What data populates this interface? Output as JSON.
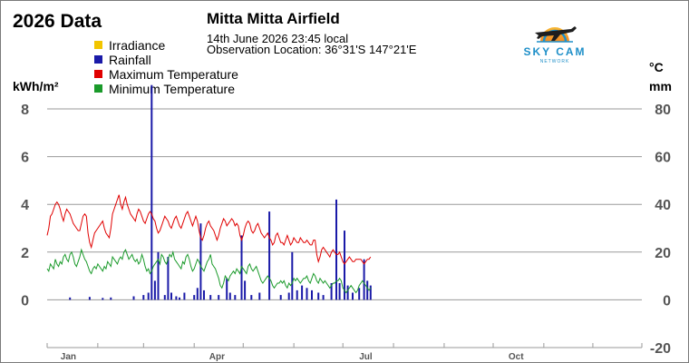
{
  "header": {
    "year_title": "2026 Data",
    "station": "Mitta Mitta Airfield",
    "datetime": "14th June 2026  23:45 local",
    "location": "Observation Location: 36°31'S 147°21'E"
  },
  "logo": {
    "text": "SKY CAM",
    "subtext": "NETWORK",
    "icon": "plane-sunset-icon"
  },
  "colors": {
    "irradiance": "#f2c500",
    "rainfall": "#1a1aa8",
    "max_temp": "#e00000",
    "min_temp": "#1a9a2a",
    "grid": "#9a9a9a",
    "axis_text": "#555555",
    "logo_blue": "#1e8fc8",
    "logo_orange": "#f5a623"
  },
  "chart_data": {
    "type": "line",
    "title": "2026 Data",
    "legend_position": "top-left",
    "grid": true,
    "legend": [
      "Irradiance",
      "Rainfall",
      "Maximum Temperature",
      "Minimum Temperature"
    ],
    "left_axis": {
      "label": "kWh/m²",
      "ticks": [
        "8",
        "6",
        "4",
        "2",
        "0"
      ],
      "range": [
        0,
        8
      ]
    },
    "right_axis": {
      "labels": [
        "°C",
        "mm"
      ],
      "ticks": [
        "80",
        "60",
        "40",
        "20",
        "0",
        "-20"
      ],
      "range": [
        -20,
        80
      ]
    },
    "x_axis": {
      "ticks": [
        "Jan",
        "Apr",
        "Jul",
        "Oct"
      ],
      "range_days": [
        1,
        365
      ]
    },
    "series": [
      {
        "name": "Maximum Temperature",
        "unit": "°C",
        "key": "max_temp",
        "start_day": 1,
        "values": [
          27,
          30,
          35,
          36,
          38,
          40,
          41,
          40,
          38,
          35,
          33,
          36,
          38,
          37,
          36,
          34,
          32,
          31,
          30,
          29,
          29,
          32,
          35,
          36,
          35,
          28,
          24,
          22,
          25,
          28,
          29,
          30,
          31,
          32,
          33,
          30,
          28,
          27,
          26,
          30,
          36,
          38,
          40,
          42,
          44,
          40,
          38,
          41,
          43,
          40,
          38,
          36,
          35,
          34,
          33,
          36,
          38,
          37,
          35,
          33,
          32,
          34,
          36,
          37,
          36,
          34,
          33,
          30,
          28,
          29,
          31,
          33,
          35,
          34,
          33,
          31,
          30,
          32,
          34,
          35,
          33,
          31,
          30,
          32,
          34,
          36,
          37,
          35,
          33,
          31,
          33,
          35,
          33,
          29,
          26,
          25,
          27,
          30,
          32,
          33,
          31,
          30,
          29,
          27,
          25,
          27,
          30,
          32,
          34,
          33,
          31,
          32,
          33,
          34,
          33,
          31,
          32,
          31,
          27,
          25,
          27,
          30,
          32,
          33,
          32,
          29,
          28,
          29,
          31,
          32,
          30,
          28,
          27,
          26,
          27,
          28,
          26,
          25,
          23,
          24,
          27,
          28,
          26,
          24,
          24,
          23,
          25,
          27,
          25,
          23,
          24,
          26,
          25,
          24,
          24,
          26,
          25,
          24,
          24,
          25,
          24,
          23,
          23,
          25,
          25,
          19,
          16,
          18,
          21,
          22,
          21,
          20,
          19,
          18,
          20,
          21,
          20,
          19,
          19,
          20,
          18,
          16,
          15,
          16,
          17,
          18,
          17,
          16,
          16,
          17,
          17,
          17,
          17,
          16,
          15,
          16,
          17,
          17,
          18
        ]
      },
      {
        "name": "Minimum Temperature",
        "unit": "°C",
        "key": "min_temp",
        "start_day": 1,
        "values": [
          13,
          12,
          15,
          14,
          13,
          17,
          15,
          14,
          16,
          15,
          18,
          19,
          17,
          16,
          19,
          20,
          18,
          15,
          14,
          16,
          18,
          21,
          19,
          17,
          16,
          14,
          12,
          11,
          13,
          14,
          13,
          15,
          14,
          13,
          12,
          14,
          13,
          16,
          15,
          14,
          18,
          17,
          16,
          15,
          17,
          18,
          17,
          20,
          21,
          19,
          17,
          18,
          19,
          17,
          16,
          17,
          15,
          16,
          19,
          17,
          14,
          12,
          13,
          11,
          12,
          14,
          15,
          16,
          17,
          15,
          19,
          18,
          16,
          15,
          17,
          19,
          18,
          20,
          17,
          16,
          15,
          14,
          13,
          16,
          15,
          18,
          19,
          17,
          14,
          12,
          13,
          15,
          17,
          16,
          14,
          13,
          12,
          14,
          16,
          17,
          19,
          15,
          14,
          13,
          11,
          9,
          6,
          5,
          7,
          10,
          9,
          8,
          10,
          11,
          12,
          11,
          13,
          12,
          11,
          14,
          13,
          12,
          11,
          14,
          15,
          13,
          12,
          13,
          14,
          12,
          10,
          8,
          7,
          8,
          9,
          10,
          9,
          8,
          6,
          5,
          6,
          7,
          7,
          8,
          7,
          8,
          6,
          5,
          7,
          6,
          7,
          9,
          8,
          9,
          8,
          7,
          8,
          9,
          9,
          10,
          8,
          7,
          9,
          11,
          10,
          8,
          7,
          9,
          8,
          7,
          8,
          7,
          6,
          5,
          6,
          7,
          7,
          8,
          8,
          9,
          8,
          5,
          4,
          3,
          4,
          5,
          6,
          5,
          4,
          3,
          4,
          6,
          7,
          8,
          7,
          6,
          5,
          4,
          5
        ]
      },
      {
        "name": "Rainfall",
        "unit": "mm",
        "key": "rainfall",
        "type": "bar",
        "points": [
          {
            "day": 15,
            "mm": 1
          },
          {
            "day": 27,
            "mm": 1.2
          },
          {
            "day": 35,
            "mm": 0.8
          },
          {
            "day": 40,
            "mm": 1
          },
          {
            "day": 54,
            "mm": 1.5
          },
          {
            "day": 60,
            "mm": 2
          },
          {
            "day": 63,
            "mm": 3
          },
          {
            "day": 65,
            "mm": 90
          },
          {
            "day": 67,
            "mm": 8
          },
          {
            "day": 69,
            "mm": 20
          },
          {
            "day": 73,
            "mm": 2
          },
          {
            "day": 75,
            "mm": 18
          },
          {
            "day": 77,
            "mm": 3
          },
          {
            "day": 80,
            "mm": 1.5
          },
          {
            "day": 82,
            "mm": 1
          },
          {
            "day": 85,
            "mm": 3
          },
          {
            "day": 91,
            "mm": 2
          },
          {
            "day": 93,
            "mm": 5
          },
          {
            "day": 95,
            "mm": 32
          },
          {
            "day": 97,
            "mm": 4
          },
          {
            "day": 101,
            "mm": 2
          },
          {
            "day": 106,
            "mm": 2
          },
          {
            "day": 111,
            "mm": 9
          },
          {
            "day": 113,
            "mm": 3
          },
          {
            "day": 116,
            "mm": 2
          },
          {
            "day": 120,
            "mm": 27
          },
          {
            "day": 122,
            "mm": 8
          },
          {
            "day": 126,
            "mm": 2
          },
          {
            "day": 131,
            "mm": 3
          },
          {
            "day": 137,
            "mm": 37
          },
          {
            "day": 144,
            "mm": 2
          },
          {
            "day": 149,
            "mm": 3
          },
          {
            "day": 151,
            "mm": 20
          },
          {
            "day": 154,
            "mm": 4
          },
          {
            "day": 157,
            "mm": 6
          },
          {
            "day": 160,
            "mm": 5
          },
          {
            "day": 163,
            "mm": 4
          },
          {
            "day": 167,
            "mm": 3
          },
          {
            "day": 170,
            "mm": 2
          },
          {
            "day": 175,
            "mm": 7
          },
          {
            "day": 178,
            "mm": 42
          },
          {
            "day": 180,
            "mm": 7
          },
          {
            "day": 183,
            "mm": 29
          },
          {
            "day": 185,
            "mm": 6
          },
          {
            "day": 188,
            "mm": 3
          },
          {
            "day": 192,
            "mm": 5
          },
          {
            "day": 195,
            "mm": 17
          },
          {
            "day": 197,
            "mm": 8
          },
          {
            "day": 199,
            "mm": 6
          }
        ]
      },
      {
        "name": "Irradiance",
        "unit": "kWh/m²",
        "key": "irradiance",
        "values": []
      }
    ]
  }
}
